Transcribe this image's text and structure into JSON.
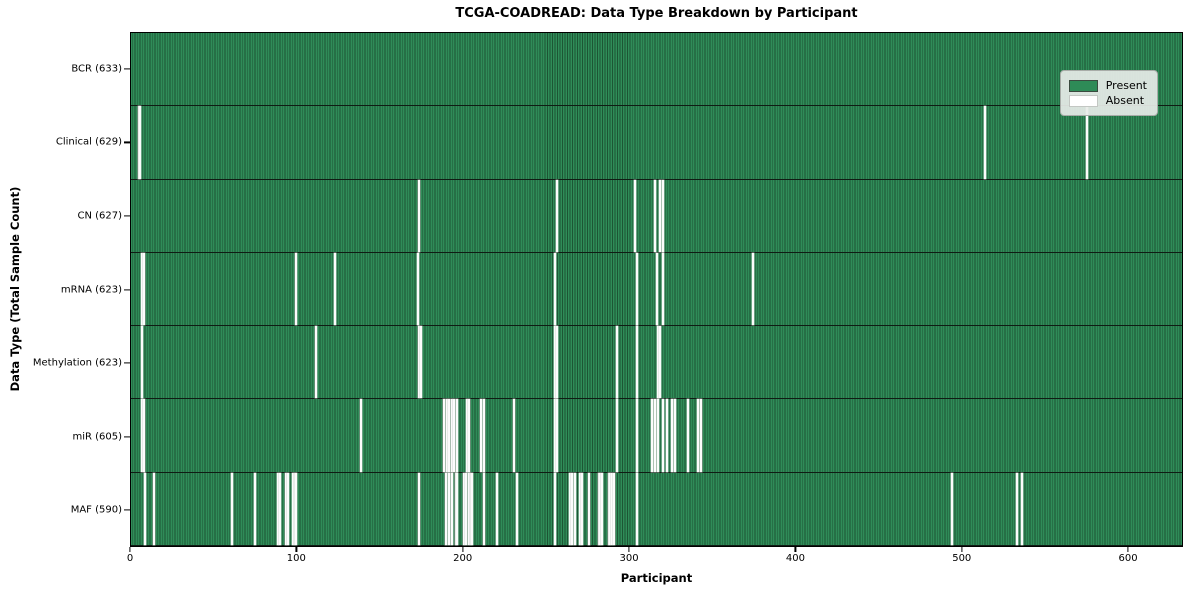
{
  "chart_data": {
    "type": "heatmap",
    "title": "TCGA-COADREAD: Data Type Breakdown by Participant",
    "xlabel": "Participant",
    "ylabel": "Data Type (Total Sample Count)",
    "x_range": [
      0,
      633
    ],
    "xticks": [
      0,
      100,
      200,
      300,
      400,
      500,
      600
    ],
    "n_participants": 633,
    "grid": false,
    "legend_position": "upper right",
    "legend": [
      {
        "label": "Present",
        "color": "#2e8b57"
      },
      {
        "label": "Absent",
        "color": "#ffffff"
      }
    ],
    "colors": {
      "present": "#2e8b57",
      "present_edge": "#1d5534",
      "absent": "#fcfcfc",
      "row_separator": "#101c14"
    },
    "rows": [
      {
        "label": "BCR (633)",
        "data_type": "BCR",
        "total_samples": 633,
        "absent_participants": []
      },
      {
        "label": "Clinical (629)",
        "data_type": "Clinical",
        "total_samples": 629,
        "absent_participants": [
          4,
          5,
          514,
          575
        ]
      },
      {
        "label": "CN (627)",
        "data_type": "CN",
        "total_samples": 627,
        "absent_participants": [
          173,
          256,
          303,
          315,
          318,
          320
        ]
      },
      {
        "label": "mRNA (623)",
        "data_type": "mRNA",
        "total_samples": 623,
        "absent_participants": [
          6,
          7,
          99,
          122,
          172,
          255,
          304,
          316,
          320,
          374
        ]
      },
      {
        "label": "Methylation (623)",
        "data_type": "Methylation",
        "total_samples": 623,
        "absent_participants": [
          6,
          111,
          173,
          174,
          255,
          256,
          292,
          304,
          317,
          318
        ]
      },
      {
        "label": "miR (605)",
        "data_type": "miR",
        "total_samples": 605,
        "absent_participants": [
          6,
          7,
          138,
          188,
          190,
          191,
          193,
          194,
          196,
          202,
          203,
          210,
          212,
          230,
          255,
          256,
          292,
          304,
          313,
          315,
          317,
          320,
          322,
          325,
          327,
          335,
          341,
          343
        ]
      },
      {
        "label": "MAF (590)",
        "data_type": "MAF",
        "total_samples": 590,
        "absent_participants": [
          8,
          13,
          60,
          74,
          88,
          89,
          93,
          94,
          97,
          98,
          99,
          173,
          189,
          191,
          193,
          195,
          196,
          200,
          201,
          203,
          204,
          205,
          212,
          220,
          232,
          255,
          264,
          265,
          267,
          270,
          271,
          275,
          281,
          282,
          283,
          287,
          288,
          289,
          290,
          304,
          494,
          533,
          536
        ]
      }
    ]
  }
}
